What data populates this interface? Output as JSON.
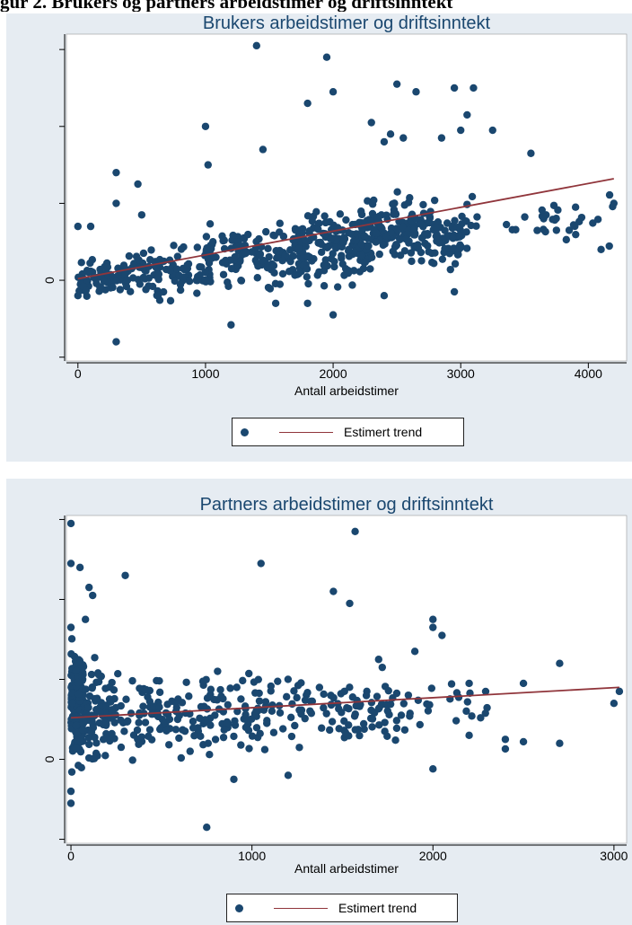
{
  "page": {
    "top_caption": "gur 2. Brukers og partners arbeidstimer og driftsinntekt"
  },
  "colors": {
    "background": "#e6ecf2",
    "plot_area": "#ffffff",
    "marker": "#1a476f",
    "trend_line": "#90353b"
  },
  "chart_data": [
    {
      "type": "scatter",
      "title": "Brukers arbeidstimer og driftsinntekt",
      "xlabel": "Antall arbeidstimer",
      "ylabel": "",
      "xlim": [
        -90,
        4300
      ],
      "ylim": [
        -1.05,
        3.2
      ],
      "x_ticks": [
        0,
        1000,
        2000,
        3000,
        4000
      ],
      "y_ticks": [
        -1,
        0,
        1,
        2,
        3
      ],
      "y_tick_labels": [
        "",
        "0",
        "",
        "",
        ""
      ],
      "grid": false,
      "legend": {
        "position": "bottom-center",
        "entries": [
          {
            "kind": "marker",
            "label": ""
          },
          {
            "kind": "line",
            "label": "Estimert trend"
          }
        ]
      },
      "trend": {
        "x": [
          0,
          4200
        ],
        "y": [
          0.02,
          1.32
        ]
      },
      "seed": 7,
      "clusters": [
        {
          "n": 60,
          "x": [
            0,
            400
          ],
          "y": [
            -0.35,
            0.35
          ]
        },
        {
          "n": 100,
          "x": [
            350,
            1050
          ],
          "y": [
            -0.35,
            0.6
          ]
        },
        {
          "n": 120,
          "x": [
            1000,
            1800
          ],
          "y": [
            -0.2,
            0.9
          ]
        },
        {
          "n": 140,
          "x": [
            1700,
            2300
          ],
          "y": [
            -0.2,
            1.15
          ]
        },
        {
          "n": 150,
          "x": [
            2200,
            2800
          ],
          "y": [
            0.05,
            1.25
          ]
        },
        {
          "n": 50,
          "x": [
            2800,
            3050
          ],
          "y": [
            0.1,
            1.0
          ]
        },
        {
          "n": 32,
          "x": [
            3000,
            4200
          ],
          "y": [
            0.4,
            1.2
          ]
        }
      ],
      "points": [
        {
          "x": 1400,
          "y": 3.05
        },
        {
          "x": 1950,
          "y": 2.9
        },
        {
          "x": 1800,
          "y": 2.3
        },
        {
          "x": 2000,
          "y": 2.45
        },
        {
          "x": 2500,
          "y": 2.55
        },
        {
          "x": 2950,
          "y": 2.5
        },
        {
          "x": 3100,
          "y": 2.5
        },
        {
          "x": 2650,
          "y": 2.45
        },
        {
          "x": 3050,
          "y": 2.15
        },
        {
          "x": 2300,
          "y": 2.05
        },
        {
          "x": 1000,
          "y": 2.0
        },
        {
          "x": 2450,
          "y": 1.9
        },
        {
          "x": 2400,
          "y": 1.8
        },
        {
          "x": 3000,
          "y": 1.95
        },
        {
          "x": 3250,
          "y": 1.95
        },
        {
          "x": 3550,
          "y": 1.65
        },
        {
          "x": 2550,
          "y": 1.85
        },
        {
          "x": 2850,
          "y": 1.85
        },
        {
          "x": 1450,
          "y": 1.7
        },
        {
          "x": 1020,
          "y": 1.5
        },
        {
          "x": 300,
          "y": 1.4
        },
        {
          "x": 470,
          "y": 1.25
        },
        {
          "x": 300,
          "y": 1.0
        },
        {
          "x": 500,
          "y": 0.85
        },
        {
          "x": 0,
          "y": 0.7
        },
        {
          "x": 100,
          "y": 0.7
        },
        {
          "x": 4200,
          "y": 1.0
        },
        {
          "x": 3900,
          "y": 0.95
        },
        {
          "x": 4100,
          "y": 0.4
        },
        {
          "x": 3750,
          "y": 0.65
        },
        {
          "x": 3850,
          "y": 0.65
        },
        {
          "x": 3650,
          "y": 0.8
        },
        {
          "x": 300,
          "y": -0.8
        },
        {
          "x": 1200,
          "y": -0.58
        },
        {
          "x": 2000,
          "y": -0.45
        },
        {
          "x": 1800,
          "y": -0.3
        },
        {
          "x": 2400,
          "y": -0.2
        },
        {
          "x": 2950,
          "y": -0.15
        },
        {
          "x": 1550,
          "y": -0.3
        },
        {
          "x": 0,
          "y": -0.2
        }
      ]
    },
    {
      "type": "scatter",
      "title": "Partners arbeidstimer og driftsinntekt",
      "xlabel": "Antall arbeidstimer",
      "ylabel": "",
      "xlim": [
        -25,
        3070
      ],
      "ylim": [
        -1.05,
        3.05
      ],
      "x_ticks": [
        0,
        1000,
        2000,
        3000
      ],
      "y_ticks": [
        -1,
        0,
        1,
        2,
        3
      ],
      "y_tick_labels": [
        "",
        "0",
        "",
        "",
        ""
      ],
      "grid": false,
      "legend": {
        "position": "bottom-center",
        "entries": [
          {
            "kind": "marker",
            "label": ""
          },
          {
            "kind": "line",
            "label": "Estimert trend"
          }
        ]
      },
      "trend": {
        "x": [
          0,
          3030
        ],
        "y": [
          0.52,
          0.9
        ]
      },
      "seed": 11,
      "clusters": [
        {
          "n": 200,
          "x": [
            0,
            70
          ],
          "y": [
            -0.25,
            1.55
          ]
        },
        {
          "n": 60,
          "x": [
            60,
            200
          ],
          "y": [
            -0.2,
            1.4
          ]
        },
        {
          "n": 160,
          "x": [
            180,
            1000
          ],
          "y": [
            -0.2,
            1.3
          ]
        },
        {
          "n": 120,
          "x": [
            1000,
            1800
          ],
          "y": [
            0.0,
            1.2
          ]
        },
        {
          "n": 25,
          "x": [
            1800,
            2300
          ],
          "y": [
            0.2,
            1.0
          ]
        }
      ],
      "points": [
        {
          "x": 0,
          "y": 2.95
        },
        {
          "x": 0,
          "y": 2.45
        },
        {
          "x": 50,
          "y": 2.4
        },
        {
          "x": 1570,
          "y": 2.85
        },
        {
          "x": 1050,
          "y": 2.45
        },
        {
          "x": 300,
          "y": 2.3
        },
        {
          "x": 1450,
          "y": 2.1
        },
        {
          "x": 1540,
          "y": 1.95
        },
        {
          "x": 100,
          "y": 2.15
        },
        {
          "x": 120,
          "y": 2.05
        },
        {
          "x": 80,
          "y": 1.75
        },
        {
          "x": 0,
          "y": 1.65
        },
        {
          "x": 2000,
          "y": 1.75
        },
        {
          "x": 2000,
          "y": 1.65
        },
        {
          "x": 2050,
          "y": 1.55
        },
        {
          "x": 1700,
          "y": 1.25
        },
        {
          "x": 1720,
          "y": 1.15
        },
        {
          "x": 1900,
          "y": 1.35
        },
        {
          "x": 2700,
          "y": 1.2
        },
        {
          "x": 2500,
          "y": 0.95
        },
        {
          "x": 2200,
          "y": 0.95
        },
        {
          "x": 3030,
          "y": 0.85
        },
        {
          "x": 3000,
          "y": 0.7
        },
        {
          "x": 2500,
          "y": 0.22
        },
        {
          "x": 2700,
          "y": 0.2
        },
        {
          "x": 2400,
          "y": 0.25
        },
        {
          "x": 2400,
          "y": 0.13
        },
        {
          "x": 2200,
          "y": 0.3
        },
        {
          "x": 750,
          "y": -0.85
        },
        {
          "x": 2000,
          "y": -0.12
        },
        {
          "x": 0,
          "y": -0.55
        },
        {
          "x": 0,
          "y": -0.4
        },
        {
          "x": 900,
          "y": -0.25
        },
        {
          "x": 1200,
          "y": -0.2
        }
      ]
    }
  ]
}
